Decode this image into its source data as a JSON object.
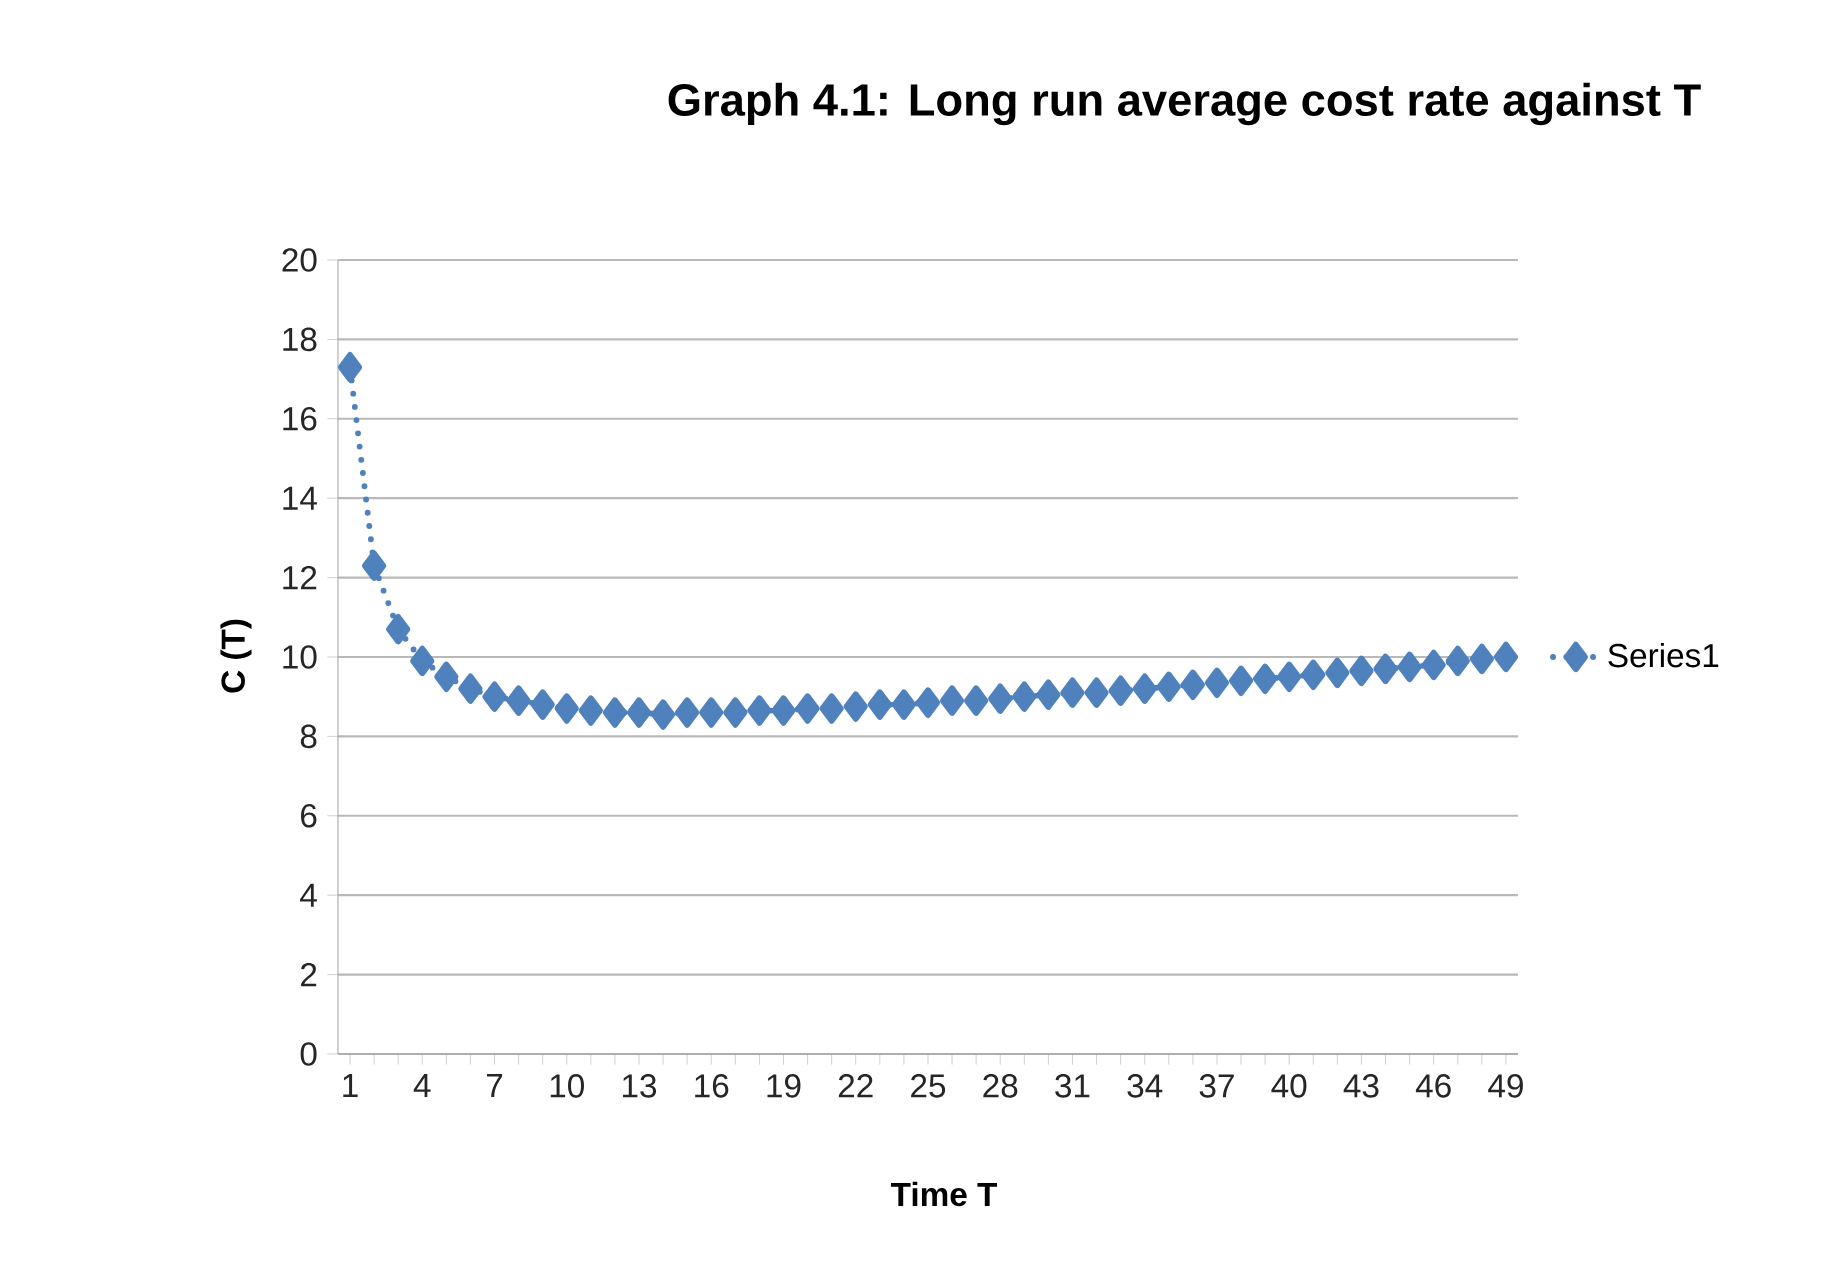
{
  "chart_data": {
    "type": "line",
    "title": "Graph 4.1: Long run average cost rate against T",
    "xlabel": "Time T",
    "ylabel": "C (T)",
    "categories": [
      "1",
      null,
      null,
      "4",
      null,
      null,
      "7",
      null,
      null,
      "10",
      null,
      null,
      "13",
      null,
      null,
      "16",
      null,
      null,
      "19",
      null,
      null,
      "22",
      null,
      null,
      "25",
      null,
      null,
      "28",
      null,
      null,
      "31",
      null,
      null,
      "34",
      null,
      null,
      "37",
      null,
      null,
      "40",
      null,
      null,
      "43",
      null,
      null,
      "46",
      null,
      null,
      "49"
    ],
    "series": [
      {
        "name": "Series1",
        "color": "#4f81bd",
        "values": [
          17.3,
          12.3,
          10.7,
          9.9,
          9.5,
          9.2,
          9.0,
          8.9,
          8.8,
          8.7,
          8.65,
          8.6,
          8.6,
          8.55,
          8.6,
          8.6,
          8.6,
          8.65,
          8.65,
          8.7,
          8.7,
          8.75,
          8.8,
          8.8,
          8.85,
          8.9,
          8.9,
          8.95,
          9.0,
          9.05,
          9.1,
          9.1,
          9.15,
          9.2,
          9.25,
          9.3,
          9.35,
          9.4,
          9.45,
          9.5,
          9.55,
          9.6,
          9.65,
          9.7,
          9.75,
          9.8,
          9.9,
          9.95,
          10.0
        ]
      }
    ],
    "ylim": [
      0,
      20
    ],
    "yticks": [
      0,
      2,
      4,
      6,
      8,
      10,
      12,
      14,
      16,
      18,
      20
    ],
    "grid": "y",
    "legend": "right",
    "marker": "diamond",
    "line_style": "dotted"
  }
}
